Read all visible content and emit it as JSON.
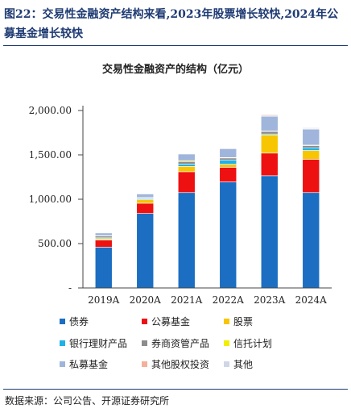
{
  "figure": {
    "title": "图22：交易性金融资产结构来看,2023年股票增长较快,2024年公募基金增长较快",
    "source": "数据来源：公司公告、开源证券研究所"
  },
  "chart_data": {
    "type": "bar",
    "stacked": true,
    "title": "交易性金融资产的结构（亿元）",
    "xlabel": "",
    "ylabel": "",
    "categories": [
      "2019A",
      "2020A",
      "2021A",
      "2022A",
      "2023A",
      "2024A"
    ],
    "ylim": [
      0,
      2000
    ],
    "yticks": [
      0,
      500,
      1000,
      1500,
      2000
    ],
    "ytick_labels": [
      "-",
      "500.00",
      "1,000.00",
      "1,500.00",
      "2,000.00"
    ],
    "grid": false,
    "legend_position": "bottom",
    "series": [
      {
        "name": "债券",
        "color": "#1b6ec2",
        "values": [
          460,
          840,
          1075,
          1195,
          1265,
          1075
        ]
      },
      {
        "name": "公募基金",
        "color": "#ee1111",
        "values": [
          80,
          115,
          235,
          165,
          255,
          375
        ]
      },
      {
        "name": "股票",
        "color": "#f7c600",
        "values": [
          15,
          40,
          60,
          35,
          205,
          100
        ]
      },
      {
        "name": "银行理财产品",
        "color": "#1fb1e8",
        "values": [
          10,
          10,
          25,
          45,
          10,
          30
        ]
      },
      {
        "name": "券商资管产品",
        "color": "#8c8c8c",
        "values": [
          20,
          10,
          30,
          25,
          30,
          25
        ]
      },
      {
        "name": "信托计划",
        "color": "#f2ee00",
        "values": [
          5,
          5,
          10,
          5,
          5,
          5
        ]
      },
      {
        "name": "私募基金",
        "color": "#9fb5db",
        "values": [
          30,
          40,
          75,
          100,
          165,
          180
        ]
      },
      {
        "name": "其他股权投资",
        "color": "#f4b09a",
        "values": [
          5,
          5,
          5,
          5,
          10,
          5
        ]
      },
      {
        "name": "其他",
        "color": "#cfd6e6",
        "values": [
          5,
          5,
          5,
          5,
          10,
          10
        ]
      }
    ]
  }
}
